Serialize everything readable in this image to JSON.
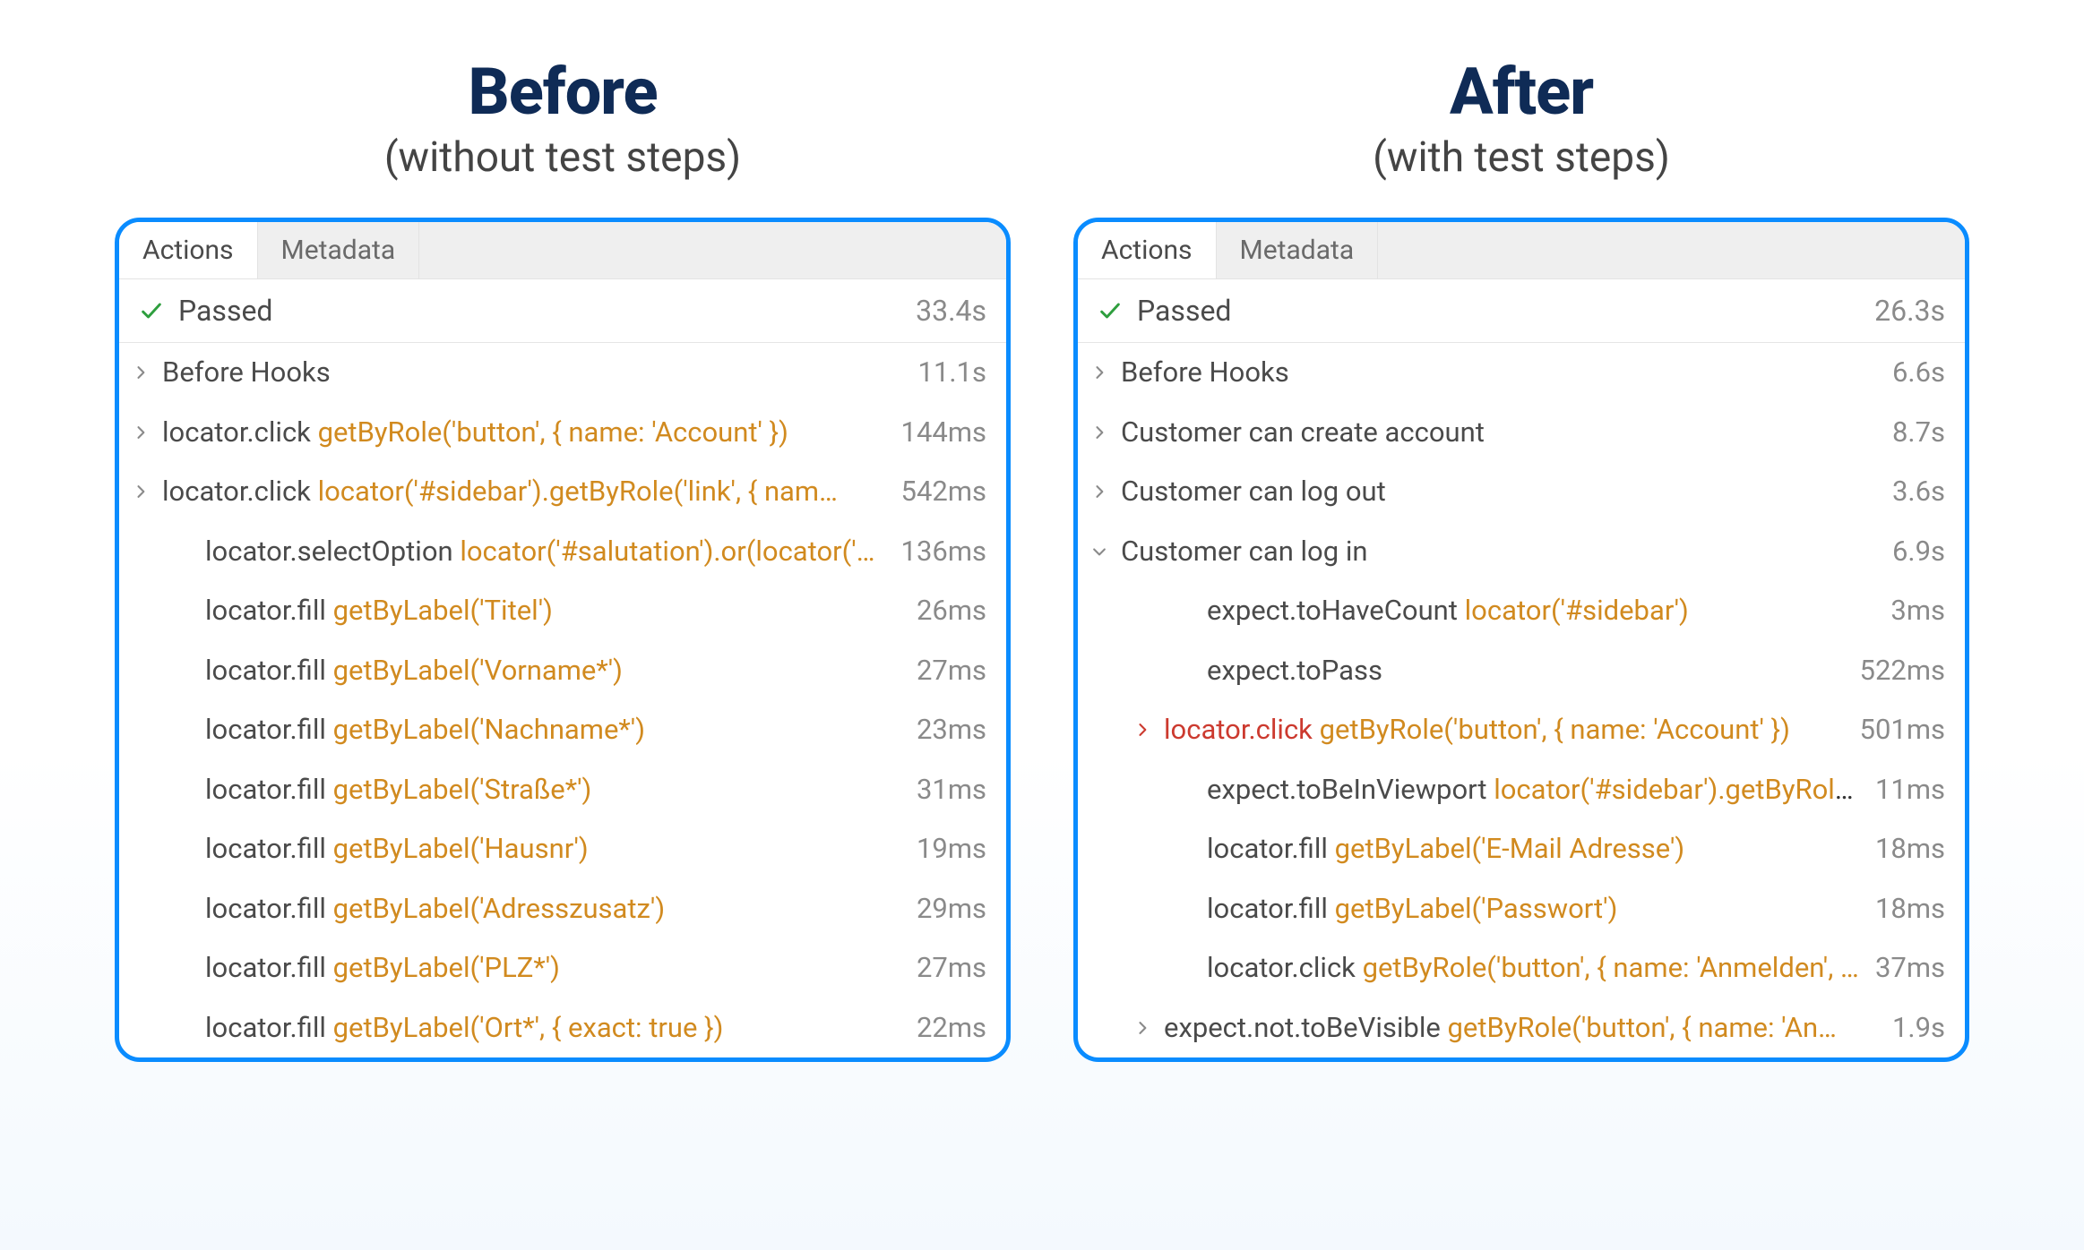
{
  "colors": {
    "heading": "#0f2b56",
    "border": "#0a8cff",
    "locator": "#d18a1f",
    "error": "#cc3a2f",
    "muted": "#8a8a8a",
    "check": "#2e9e3e"
  },
  "tabs": {
    "actions": "Actions",
    "metadata": "Metadata"
  },
  "before": {
    "title": "Before",
    "subtitle": "(without test steps)",
    "status": {
      "label": "Passed",
      "duration": "33.4s"
    },
    "rows": [
      {
        "indent": 0,
        "chevron": "right",
        "segments": [
          [
            "plain",
            "Before Hooks"
          ]
        ],
        "duration": "11.1s"
      },
      {
        "indent": 0,
        "chevron": "right",
        "segments": [
          [
            "plain",
            "locator.click "
          ],
          [
            "locator",
            "getByRole('button', { name: 'Account' })"
          ]
        ],
        "duration": "144ms"
      },
      {
        "indent": 0,
        "chevron": "right",
        "segments": [
          [
            "plain",
            "locator.click "
          ],
          [
            "locator",
            "locator('#sidebar').getByRole('link', { nam…"
          ]
        ],
        "duration": "542ms"
      },
      {
        "indent": 1,
        "chevron": "",
        "segments": [
          [
            "plain",
            "locator.selectOption "
          ],
          [
            "locator",
            "locator('#salutation').or(locator('…"
          ]
        ],
        "duration": "136ms"
      },
      {
        "indent": 1,
        "chevron": "",
        "segments": [
          [
            "plain",
            "locator.fill "
          ],
          [
            "locator",
            "getByLabel('Titel')"
          ]
        ],
        "duration": "26ms"
      },
      {
        "indent": 1,
        "chevron": "",
        "segments": [
          [
            "plain",
            "locator.fill "
          ],
          [
            "locator",
            "getByLabel('Vorname*')"
          ]
        ],
        "duration": "27ms"
      },
      {
        "indent": 1,
        "chevron": "",
        "segments": [
          [
            "plain",
            "locator.fill "
          ],
          [
            "locator",
            "getByLabel('Nachname*')"
          ]
        ],
        "duration": "23ms"
      },
      {
        "indent": 1,
        "chevron": "",
        "segments": [
          [
            "plain",
            "locator.fill "
          ],
          [
            "locator",
            "getByLabel('Straße*')"
          ]
        ],
        "duration": "31ms"
      },
      {
        "indent": 1,
        "chevron": "",
        "segments": [
          [
            "plain",
            "locator.fill "
          ],
          [
            "locator",
            "getByLabel('Hausnr')"
          ]
        ],
        "duration": "19ms"
      },
      {
        "indent": 1,
        "chevron": "",
        "segments": [
          [
            "plain",
            "locator.fill "
          ],
          [
            "locator",
            "getByLabel('Adresszusatz')"
          ]
        ],
        "duration": "29ms"
      },
      {
        "indent": 1,
        "chevron": "",
        "segments": [
          [
            "plain",
            "locator.fill "
          ],
          [
            "locator",
            "getByLabel('PLZ*')"
          ]
        ],
        "duration": "27ms"
      },
      {
        "indent": 1,
        "chevron": "",
        "segments": [
          [
            "plain",
            "locator.fill "
          ],
          [
            "locator",
            "getByLabel('Ort*', { exact: true })"
          ]
        ],
        "duration": "22ms"
      }
    ]
  },
  "after": {
    "title": "After",
    "subtitle": "(with test steps)",
    "status": {
      "label": "Passed",
      "duration": "26.3s"
    },
    "rows": [
      {
        "indent": 0,
        "chevron": "right",
        "segments": [
          [
            "plain",
            "Before Hooks"
          ]
        ],
        "duration": "6.6s"
      },
      {
        "indent": 0,
        "chevron": "right",
        "segments": [
          [
            "plain",
            "Customer can create account"
          ]
        ],
        "duration": "8.7s"
      },
      {
        "indent": 0,
        "chevron": "right",
        "segments": [
          [
            "plain",
            "Customer can log out"
          ]
        ],
        "duration": "3.6s"
      },
      {
        "indent": 0,
        "chevron": "down",
        "segments": [
          [
            "plain",
            "Customer can log in"
          ]
        ],
        "duration": "6.9s"
      },
      {
        "indent": 2,
        "chevron": "",
        "segments": [
          [
            "plain",
            "expect.toHaveCount "
          ],
          [
            "locator",
            "locator('#sidebar')"
          ]
        ],
        "duration": "3ms"
      },
      {
        "indent": 2,
        "chevron": "",
        "segments": [
          [
            "plain",
            "expect.toPass"
          ]
        ],
        "duration": "522ms"
      },
      {
        "indent": 1,
        "chevron": "right",
        "chevronColor": "error",
        "segments": [
          [
            "error",
            "locator.click "
          ],
          [
            "locator",
            "getByRole('button', { name: 'Account' })"
          ]
        ],
        "duration": "501ms"
      },
      {
        "indent": 2,
        "chevron": "",
        "segments": [
          [
            "plain",
            "expect.toBeInViewport "
          ],
          [
            "locator",
            "locator('#sidebar').getByRole(…"
          ]
        ],
        "duration": "11ms"
      },
      {
        "indent": 2,
        "chevron": "",
        "segments": [
          [
            "plain",
            "locator.fill "
          ],
          [
            "locator",
            "getByLabel('E-Mail Adresse')"
          ]
        ],
        "duration": "18ms"
      },
      {
        "indent": 2,
        "chevron": "",
        "segments": [
          [
            "plain",
            "locator.fill "
          ],
          [
            "locator",
            "getByLabel('Passwort')"
          ]
        ],
        "duration": "18ms"
      },
      {
        "indent": 2,
        "chevron": "",
        "segments": [
          [
            "plain",
            "locator.click "
          ],
          [
            "locator",
            "getByRole('button', { name: 'Anmelden', …"
          ]
        ],
        "duration": "37ms"
      },
      {
        "indent": 1,
        "chevron": "right",
        "segments": [
          [
            "plain",
            "expect.not.toBeVisible "
          ],
          [
            "locator",
            "getByRole('button', { name: 'An…"
          ]
        ],
        "duration": "1.9s"
      }
    ]
  }
}
